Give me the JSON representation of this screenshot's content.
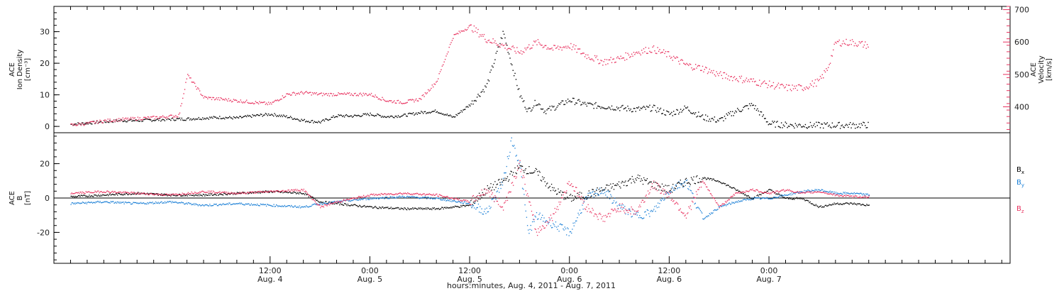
{
  "colors": {
    "black": "#000000",
    "pink": "#e8325f",
    "blue": "#1a7fd6",
    "frame": "#000000"
  },
  "chart_data": [
    {
      "type": "scatter",
      "panel": "top",
      "ylabel": "ACE\nIon Density\n[cm⁻³]",
      "ylim": [
        -2,
        38
      ],
      "yticks": [
        0,
        10,
        20,
        30
      ],
      "ylabel_right": "ACE\nVelocity\n[km/s]",
      "ylim_right": [
        320,
        710
      ],
      "yticks_right": [
        400,
        500,
        600,
        700
      ],
      "series": [
        {
          "key": "density",
          "axis": "left",
          "color": "#000000",
          "x": [
            -12,
            -10,
            -8,
            -6,
            -4,
            -2,
            0,
            2,
            4,
            6,
            8,
            10,
            12,
            14,
            16,
            18,
            20,
            22,
            24,
            26,
            28,
            30,
            32,
            34,
            36,
            38,
            40,
            41,
            42,
            43,
            44,
            45,
            46,
            48,
            50,
            52,
            54,
            56,
            58,
            60,
            62,
            64,
            66,
            68,
            70,
            72,
            74,
            76,
            78,
            80,
            82,
            84
          ],
          "y": [
            0.8,
            1.2,
            1.6,
            2,
            2,
            2.2,
            2.4,
            2.5,
            2.8,
            3,
            2.8,
            3.5,
            4,
            3.2,
            2,
            1.5,
            3.5,
            3.4,
            4,
            3.2,
            3.6,
            4.5,
            5,
            3,
            7,
            13,
            30,
            20,
            10,
            5,
            8,
            5,
            6,
            8.5,
            7,
            6.5,
            6,
            5.5,
            6,
            4,
            6,
            3,
            2,
            5,
            7,
            1,
            0.6,
            0.5,
            0.5,
            0.5,
            0.5,
            0.6
          ]
        },
        {
          "key": "velocity",
          "axis": "right",
          "color": "#e8325f",
          "x": [
            -12,
            -10,
            -8,
            -6,
            -4,
            -2,
            0,
            1,
            2,
            4,
            6,
            8,
            10,
            12,
            14,
            16,
            18,
            20,
            22,
            24,
            26,
            28,
            30,
            32,
            34,
            36,
            37,
            38,
            39,
            40,
            42,
            44,
            46,
            48,
            50,
            52,
            54,
            56,
            58,
            60,
            62,
            64,
            66,
            68,
            70,
            72,
            74,
            76,
            78,
            79,
            80,
            82,
            84
          ],
          "y": [
            345,
            350,
            358,
            362,
            365,
            368,
            372,
            375,
            500,
            430,
            425,
            420,
            415,
            410,
            440,
            445,
            440,
            440,
            440,
            440,
            420,
            415,
            425,
            480,
            620,
            650,
            630,
            610,
            600,
            590,
            570,
            600,
            580,
            590,
            560,
            540,
            550,
            570,
            580,
            560,
            530,
            520,
            500,
            490,
            480,
            470,
            460,
            460,
            480,
            520,
            600,
            600,
            590
          ]
        }
      ]
    },
    {
      "type": "line",
      "panel": "bottom",
      "ylabel": "ACE\nB\n[nT]",
      "ylim": [
        -38,
        38
      ],
      "yticks": [
        -20,
        0,
        20
      ],
      "series": [
        {
          "name": "Bₓ",
          "color": "#000000",
          "x": [
            -12,
            -8,
            -4,
            0,
            4,
            8,
            12,
            16,
            18,
            20,
            24,
            28,
            32,
            36,
            38,
            40,
            42,
            44,
            46,
            48,
            50,
            52,
            54,
            56,
            58,
            60,
            62,
            64,
            66,
            68,
            70,
            72,
            74,
            76,
            78,
            80,
            82,
            84
          ],
          "y": [
            1,
            2,
            3,
            2,
            2,
            3,
            4,
            3,
            -2,
            -3,
            -5,
            -6,
            -6,
            -4,
            5,
            10,
            18,
            15,
            5,
            0,
            2,
            5,
            8,
            12,
            8,
            5,
            10,
            12,
            10,
            5,
            0,
            5,
            0,
            0,
            -5,
            -3,
            -3,
            -4
          ]
        },
        {
          "name": "Bᵧ",
          "color": "#1a7fd6",
          "x": [
            -12,
            -8,
            -4,
            0,
            4,
            8,
            12,
            16,
            18,
            20,
            24,
            28,
            32,
            36,
            38,
            40,
            41,
            42,
            43,
            44,
            46,
            48,
            50,
            52,
            54,
            56,
            58,
            60,
            62,
            64,
            66,
            68,
            70,
            72,
            74,
            76,
            78,
            80,
            82,
            84
          ],
          "y": [
            -3,
            -2,
            -3,
            -2,
            -4,
            -3,
            -4,
            -5,
            -3,
            -2,
            0,
            1,
            0,
            -3,
            -8,
            10,
            34,
            20,
            -20,
            -10,
            -15,
            -20,
            0,
            5,
            -5,
            -10,
            -8,
            5,
            10,
            -12,
            -5,
            -2,
            0,
            0,
            2,
            4,
            5,
            3,
            3,
            2
          ]
        },
        {
          "name": "B_z",
          "color": "#e8325f",
          "x": [
            -12,
            -8,
            -4,
            0,
            4,
            8,
            12,
            16,
            18,
            20,
            24,
            28,
            32,
            36,
            38,
            40,
            42,
            44,
            46,
            48,
            50,
            52,
            54,
            56,
            58,
            60,
            62,
            64,
            66,
            68,
            70,
            72,
            74,
            76,
            78,
            80,
            82,
            84
          ],
          "y": [
            3,
            4,
            3,
            2,
            4,
            3,
            4,
            5,
            -5,
            -2,
            2,
            3,
            2,
            -2,
            5,
            -5,
            20,
            -20,
            -10,
            10,
            -5,
            -12,
            -5,
            -8,
            8,
            2,
            -10,
            10,
            -5,
            3,
            5,
            3,
            5,
            3,
            4,
            2,
            1,
            1
          ]
        }
      ]
    }
  ],
  "x_axis": {
    "range_hours": [
      -14,
      101
    ],
    "major_ticks": [
      {
        "h": 12,
        "time": "12:00",
        "date": "Aug. 4"
      },
      {
        "h": 24,
        "time": "0:00",
        "date": "Aug. 5"
      },
      {
        "h": 36,
        "time": "12:00",
        "date": "Aug. 5"
      },
      {
        "h": 48,
        "time": "0:00",
        "date": "Aug. 6"
      },
      {
        "h": 60,
        "time": "12:00",
        "date": "Aug. 6"
      },
      {
        "h": 72,
        "time": "0:00",
        "date": "Aug. 7"
      }
    ],
    "xlabel": "hours:minutes, Aug.  4, 2011 - Aug.  7, 2011"
  },
  "legend": {
    "bx": "B",
    "bx_sub": "x",
    "by": "B",
    "by_sub": "y",
    "bz": "B",
    "bz_sub": "z"
  }
}
